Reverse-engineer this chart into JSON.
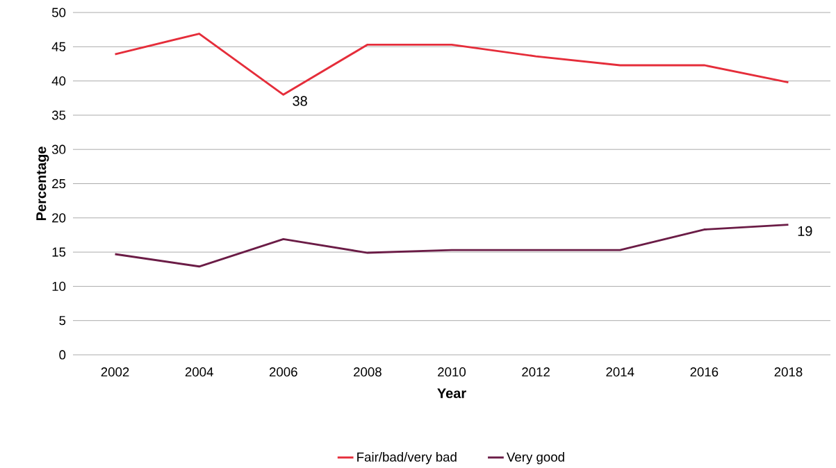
{
  "chart_data": {
    "type": "line",
    "xlabel": "Year",
    "ylabel": "Percentage",
    "categories": [
      "2002",
      "2004",
      "2006",
      "2008",
      "2010",
      "2012",
      "2014",
      "2016",
      "2018"
    ],
    "series": [
      {
        "name": "Fair/bad/very bad",
        "color": "#e52d3a",
        "values": [
          43.9,
          46.9,
          38,
          45.3,
          45.3,
          43.6,
          42.3,
          42.3,
          39.8
        ]
      },
      {
        "name": "Very good",
        "color": "#6b1c46",
        "values": [
          14.7,
          12.9,
          16.9,
          14.9,
          15.3,
          15.3,
          15.3,
          18.3,
          19
        ]
      }
    ],
    "ylim": [
      0,
      50
    ],
    "yticks": [
      0,
      5,
      10,
      15,
      20,
      25,
      30,
      35,
      40,
      45,
      50
    ],
    "grid": "y",
    "legend": "bottom",
    "marker": "none",
    "line_style": "solid",
    "annotations": [
      {
        "text": "38",
        "x": "2006",
        "y": 38
      },
      {
        "text": "19",
        "x": "2018",
        "y": 19
      }
    ]
  }
}
